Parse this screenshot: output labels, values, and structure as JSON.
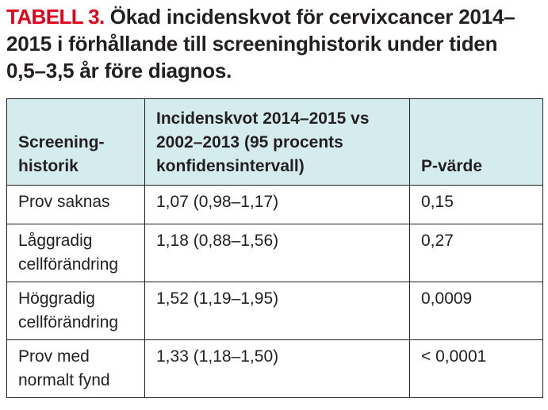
{
  "caption": {
    "label": "TABELL 3.",
    "text": "Ökad incidenskvot för cervixcancer 2014–2015 i förhållande till screeninghistorik under tiden 0,5–3,5 år före diagnos."
  },
  "table": {
    "headers": [
      "Screening-historik",
      "Incidenskvot 2014–2015 vs 2002–2013 (95 procents konfidensintervall)",
      "P-värde"
    ],
    "rows": [
      [
        "Prov saknas",
        "1,07 (0,98–1,17)",
        "0,15"
      ],
      [
        "Låggradig cellförändring",
        "1,18 (0,88–1,56)",
        "0,27"
      ],
      [
        "Höggradig cellförändring",
        "1,52 (1,19–1,95)",
        "0,0009"
      ],
      [
        "Prov med normalt fynd",
        "1,33 (1,18–1,50)",
        "< 0,0001"
      ]
    ]
  },
  "colors": {
    "label": "#e2001a",
    "header_background": "#d5ecef",
    "text": "#231f20",
    "border": "#231f20"
  }
}
